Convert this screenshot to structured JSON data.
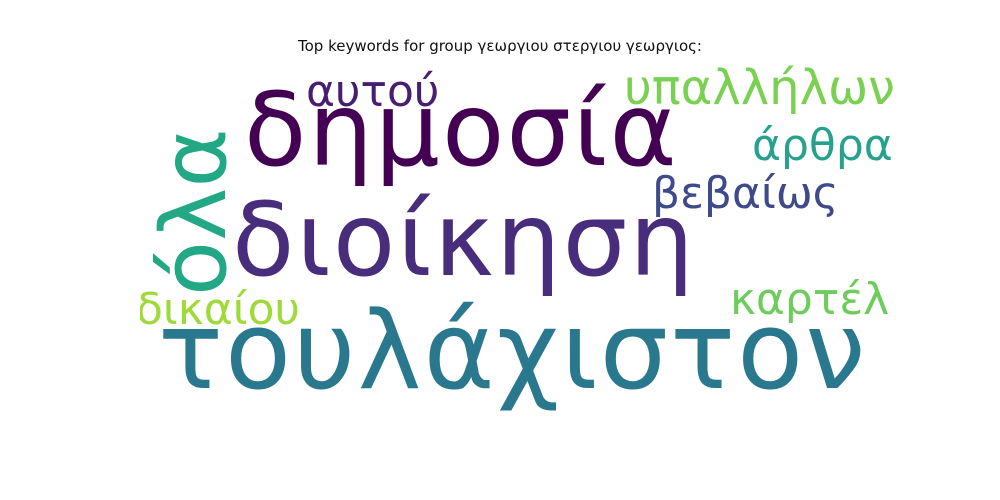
{
  "title": "Top keywords for group γεωργιου στεργιου γεωργιος:",
  "words": [
    {
      "text": "τουλάχιστον",
      "color": "#2a788e"
    },
    {
      "text": "διοίκηση",
      "color": "#472d7b"
    },
    {
      "text": "δημοσία",
      "color": "#440154"
    },
    {
      "text": "υπαλλήλων",
      "color": "#7ad151"
    },
    {
      "text": "αυτού",
      "color": "#481f70"
    },
    {
      "text": "άρθρα",
      "color": "#25a18e"
    },
    {
      "text": "βεβαίως",
      "color": "#3e4a89"
    },
    {
      "text": "καρτέλ",
      "color": "#6ccd5a"
    },
    {
      "text": "δικαίου",
      "color": "#a0da39"
    },
    {
      "text": "όλα",
      "color": "#22a884"
    }
  ]
}
